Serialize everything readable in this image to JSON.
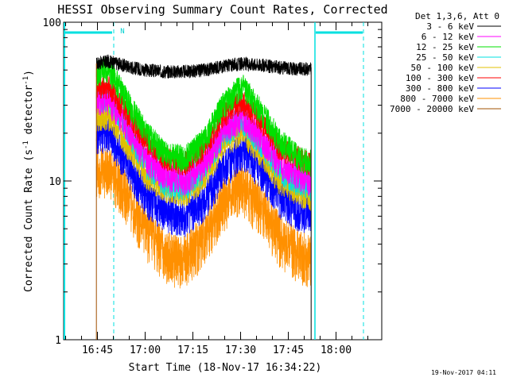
{
  "chart_data": {
    "type": "line",
    "title": "HESSI Observing Summary Count Rates, Corrected",
    "xlabel": "Start Time (18-Nov-17 16:34:22)",
    "ylabel": "Corrected Count Rate (s",
    "ylabel_sup1": "-1",
    "ylabel_mid": " detector",
    "ylabel_sup2": "-1",
    "ylabel_end": ")",
    "y_scale": "log",
    "ylim": [
      1,
      100
    ],
    "x_range_minutes": [
      "16:34:22",
      "18:14:22"
    ],
    "x_ticks": [
      "16:45",
      "17:00",
      "17:15",
      "17:30",
      "17:45",
      "18:00"
    ],
    "x_tick_minutes": [
      10.63,
      25.63,
      40.63,
      55.63,
      70.63,
      85.63
    ],
    "y_ticks": [
      "1",
      "10",
      "100"
    ],
    "legend_title": "Det 1,3,6, Att 0",
    "legend_position": "top-right",
    "data_start_minute": 10.3,
    "data_end_minute": 77.8,
    "flag_label": "N",
    "timestamp": "19-Nov-2017 04:11",
    "series": [
      {
        "name": "3 - 6 keV",
        "color": "#000000",
        "x": [
          10.3,
          14,
          20,
          26,
          32,
          38,
          44,
          50,
          56,
          62,
          68,
          74,
          77.8
        ],
        "values": [
          55,
          57,
          53,
          50,
          49,
          49,
          50,
          53,
          55,
          54,
          52,
          51,
          51
        ]
      },
      {
        "name": "6 - 12 keV",
        "color": "#ff00ff",
        "x": [
          10.3,
          14,
          20,
          26,
          32,
          38,
          44,
          50,
          56,
          62,
          68,
          74,
          77.8
        ],
        "values": [
          33,
          33,
          22,
          14,
          11,
          10,
          13,
          20,
          26,
          19,
          13,
          11,
          10
        ]
      },
      {
        "name": "12 - 25 keV",
        "color": "#00e000",
        "x": [
          10.3,
          14,
          20,
          26,
          32,
          38,
          44,
          50,
          56,
          62,
          68,
          74,
          77.8
        ],
        "values": [
          48,
          52,
          32,
          20,
          15,
          14,
          18,
          30,
          40,
          28,
          18,
          14,
          13
        ]
      },
      {
        "name": "25 - 50 keV",
        "color": "#00e0e0",
        "x": [
          10.3,
          14,
          20,
          26,
          32,
          38,
          44,
          50,
          56,
          62,
          68,
          74,
          77.8
        ],
        "values": [
          34,
          35,
          22,
          13,
          10,
          9.5,
          12,
          20,
          25,
          18,
          12,
          10,
          9.5
        ]
      },
      {
        "name": "50 - 100 keV",
        "color": "#e0c000",
        "x": [
          10.3,
          14,
          20,
          26,
          32,
          38,
          44,
          50,
          56,
          62,
          68,
          74,
          77.8
        ],
        "values": [
          25,
          26,
          17,
          11,
          9,
          8.5,
          10.5,
          17,
          21,
          15,
          10,
          8.5,
          8
        ]
      },
      {
        "name": "100 - 300 keV",
        "color": "#ff0000",
        "x": [
          10.3,
          14,
          20,
          26,
          32,
          38,
          44,
          50,
          56,
          62,
          68,
          74,
          77.8
        ],
        "values": [
          39,
          40,
          27,
          18,
          14,
          13,
          16,
          26,
          32,
          24,
          16,
          14,
          13
        ]
      },
      {
        "name": "300 - 800 keV",
        "color": "#0000ff",
        "x": [
          10.3,
          14,
          20,
          26,
          32,
          38,
          44,
          50,
          56,
          62,
          68,
          74,
          77.8
        ],
        "values": [
          20,
          21,
          13,
          8,
          6.5,
          6,
          7.5,
          12,
          16,
          12,
          8,
          6.5,
          6.5
        ]
      },
      {
        "name": "800 - 7000 keV",
        "color": "#ff9000",
        "x": [
          10.3,
          14,
          20,
          26,
          32,
          38,
          44,
          50,
          56,
          62,
          68,
          74,
          77.8
        ],
        "values": [
          12,
          12.5,
          8,
          5,
          3.5,
          3.3,
          4.5,
          7.5,
          9.5,
          7,
          4.5,
          3.6,
          3.3
        ]
      },
      {
        "name": "7000 - 20000 keV",
        "color": "#a05000",
        "x": [],
        "values": []
      }
    ]
  }
}
